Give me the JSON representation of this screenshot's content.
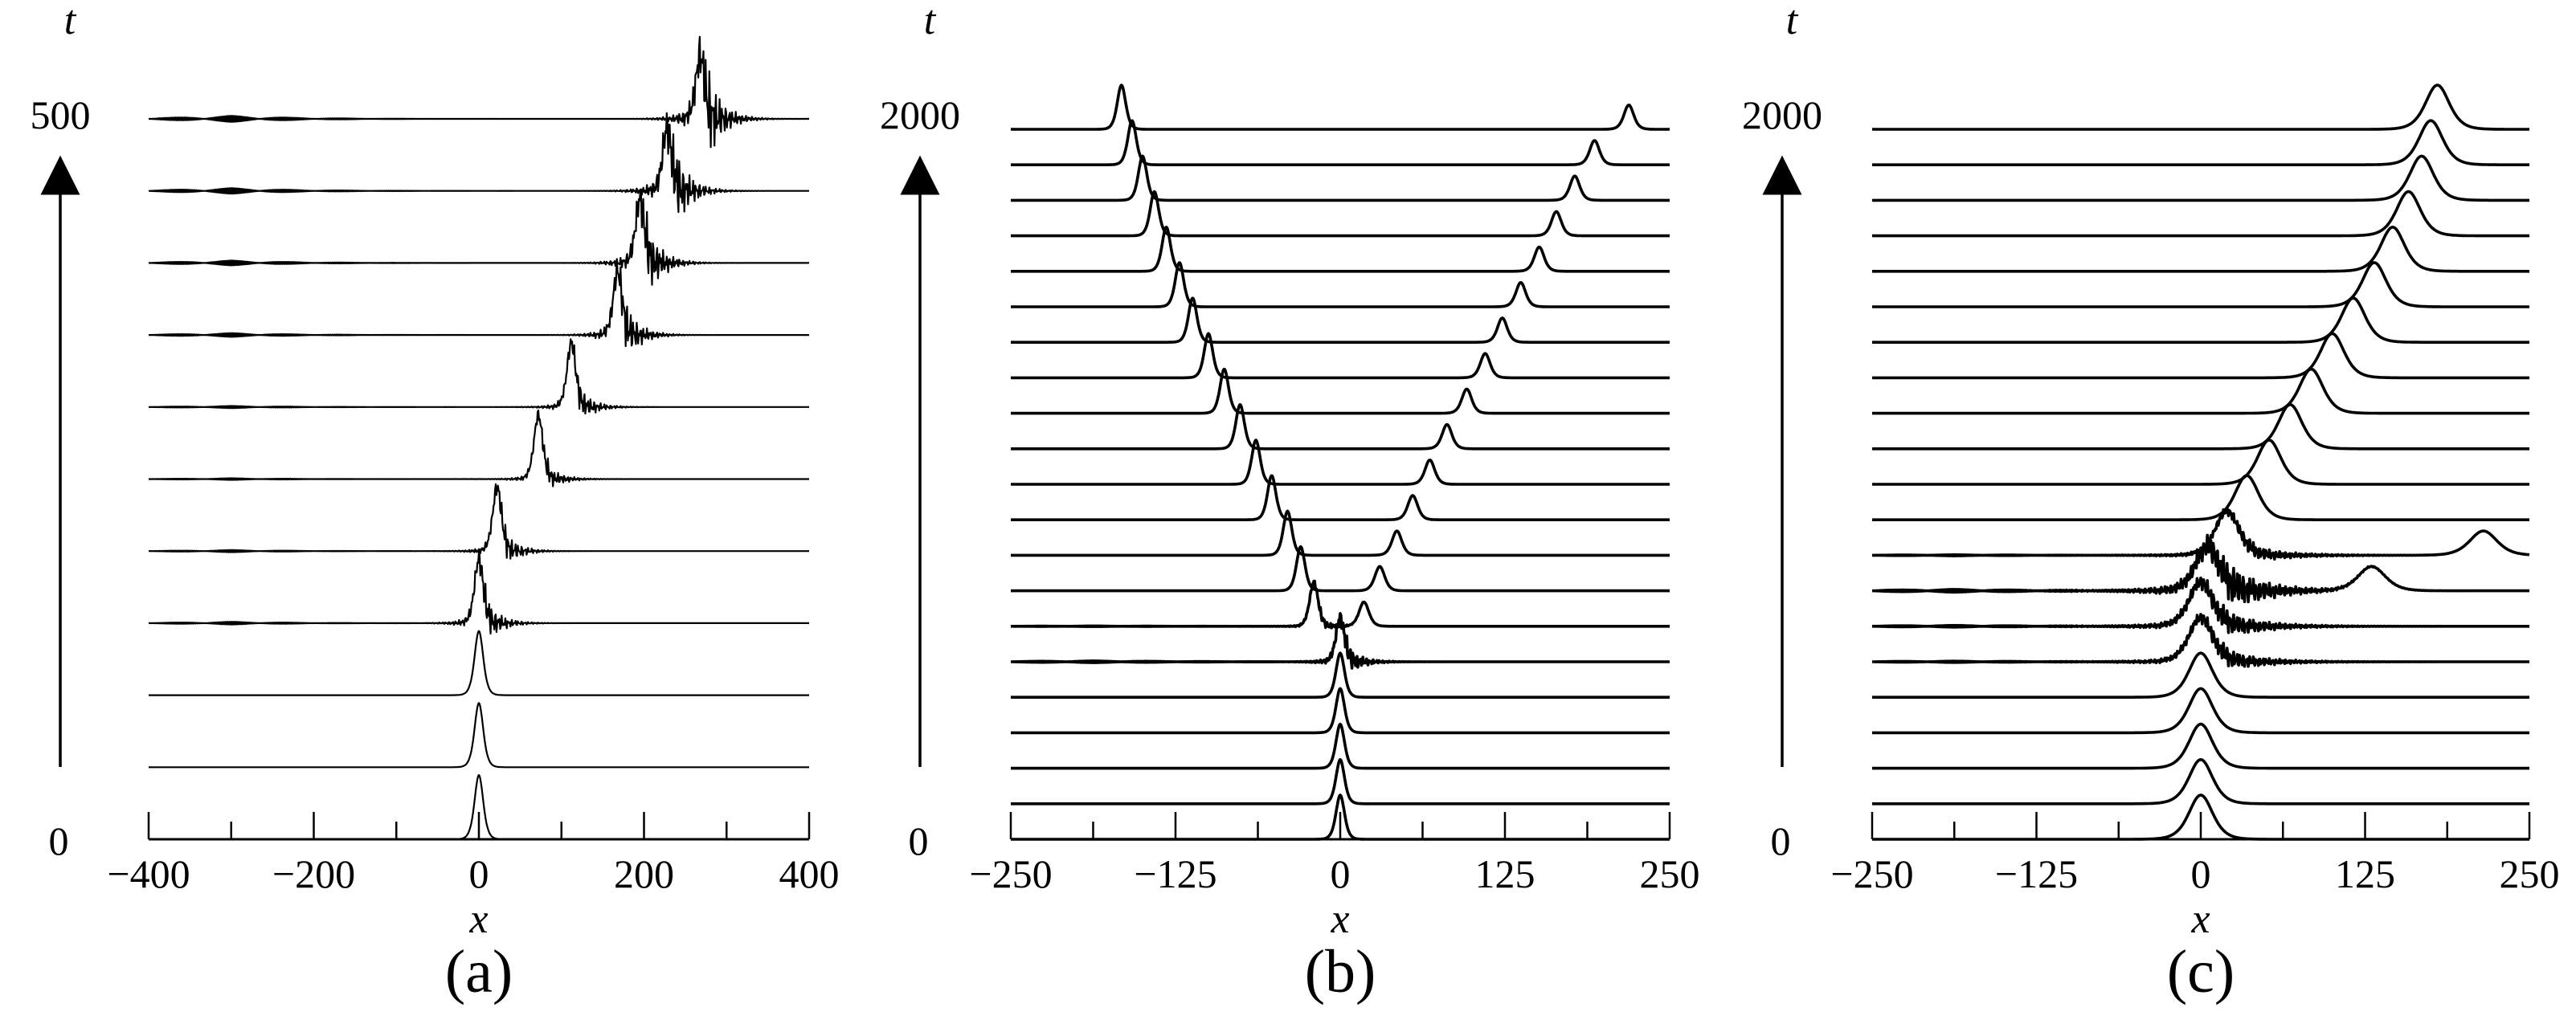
{
  "chart_data": [
    {
      "type": "waterfall-line",
      "panel": "(a)",
      "xlabel": "x",
      "ylabel": "t",
      "xlim": [
        -400,
        400
      ],
      "xticks": [
        -400,
        -300,
        -200,
        -100,
        0,
        100,
        200,
        300,
        400
      ],
      "xtick_labels": [
        "-400",
        "",
        "-200",
        "",
        "0",
        "",
        "200",
        "",
        "400"
      ],
      "t_range": [
        0,
        500
      ],
      "t_labels": [
        "0",
        "500"
      ],
      "series": [
        {
          "t": 0,
          "center": 0,
          "noise": 0,
          "second": null
        },
        {
          "t": 50,
          "center": 0,
          "noise": 0,
          "second": null
        },
        {
          "t": 100,
          "center": 0,
          "noise": 0,
          "second": null
        },
        {
          "t": 150,
          "center": 0,
          "noise": 0.55,
          "second": null
        },
        {
          "t": 200,
          "center": 22,
          "noise": 0.45,
          "second": null
        },
        {
          "t": 250,
          "center": 72,
          "noise": 0.35,
          "second": null
        },
        {
          "t": 300,
          "center": 112,
          "noise": 0.45,
          "second": null
        },
        {
          "t": 350,
          "center": 168,
          "noise": 0.75,
          "second": null
        },
        {
          "t": 400,
          "center": 195,
          "noise": 0.95,
          "second": null
        },
        {
          "t": 450,
          "center": 228,
          "noise": 1.1,
          "second": null
        },
        {
          "t": 500,
          "center": 268,
          "noise": 1.2,
          "second": null
        }
      ]
    },
    {
      "type": "waterfall-line",
      "panel": "(b)",
      "xlabel": "x",
      "ylabel": "t",
      "xlim": [
        -250,
        250
      ],
      "xticks": [
        -250,
        -187.5,
        -125,
        -62.5,
        0,
        62.5,
        125,
        187.5,
        250
      ],
      "xtick_labels": [
        "-250",
        "",
        "-125",
        "",
        "0",
        "",
        "125",
        "",
        "250"
      ],
      "t_range": [
        0,
        2000
      ],
      "t_labels": [
        "0",
        "2000"
      ],
      "series": [
        {
          "t": 0,
          "center": 0,
          "noise": 0,
          "second": null
        },
        {
          "t": 100,
          "center": 0,
          "noise": 0,
          "second": null
        },
        {
          "t": 200,
          "center": 0,
          "noise": 0,
          "second": null
        },
        {
          "t": 300,
          "center": 0,
          "noise": 0,
          "second": null
        },
        {
          "t": 400,
          "center": 0,
          "noise": 0,
          "second": null
        },
        {
          "t": 500,
          "center": 0,
          "noise": 0.5,
          "second": null
        },
        {
          "t": 600,
          "center": -20,
          "noise": 0.2,
          "second": 18
        },
        {
          "t": 700,
          "center": -30,
          "noise": 0,
          "second": 30
        },
        {
          "t": 800,
          "center": -40,
          "noise": 0,
          "second": 43
        },
        {
          "t": 900,
          "center": -52,
          "noise": 0,
          "second": 55
        },
        {
          "t": 1000,
          "center": -64,
          "noise": 0,
          "second": 68
        },
        {
          "t": 1100,
          "center": -76,
          "noise": 0,
          "second": 81
        },
        {
          "t": 1200,
          "center": -88,
          "noise": 0,
          "second": 96
        },
        {
          "t": 1300,
          "center": -100,
          "noise": 0,
          "second": 110
        },
        {
          "t": 1400,
          "center": -112,
          "noise": 0,
          "second": 123
        },
        {
          "t": 1500,
          "center": -122,
          "noise": 0,
          "second": 137
        },
        {
          "t": 1600,
          "center": -132,
          "noise": 0,
          "second": 151
        },
        {
          "t": 1700,
          "center": -141,
          "noise": 0,
          "second": 164
        },
        {
          "t": 1800,
          "center": -150,
          "noise": 0,
          "second": 178
        },
        {
          "t": 1900,
          "center": -158,
          "noise": 0,
          "second": 193
        },
        {
          "t": 2000,
          "center": -166,
          "noise": 0,
          "second": 219
        }
      ]
    },
    {
      "type": "waterfall-line",
      "panel": "(c)",
      "xlabel": "x",
      "ylabel": "t",
      "xlim": [
        -250,
        250
      ],
      "xticks": [
        -250,
        -187.5,
        -125,
        -62.5,
        0,
        62.5,
        125,
        187.5,
        250
      ],
      "xtick_labels": [
        "-250",
        "",
        "-125",
        "",
        "0",
        "",
        "125",
        "",
        "250"
      ],
      "t_range": [
        0,
        2000
      ],
      "t_labels": [
        "0",
        "2000"
      ],
      "series": [
        {
          "t": 0,
          "center": 0,
          "noise": 0,
          "second": null
        },
        {
          "t": 100,
          "center": 0,
          "noise": 0,
          "second": null
        },
        {
          "t": 200,
          "center": 0,
          "noise": 0,
          "second": null
        },
        {
          "t": 300,
          "center": 0,
          "noise": 0,
          "second": null
        },
        {
          "t": 400,
          "center": 0,
          "noise": 0,
          "second": null
        },
        {
          "t": 500,
          "center": 0,
          "noise": 0.4,
          "second": null
        },
        {
          "t": 600,
          "center": 0,
          "noise": 0.5,
          "second": null
        },
        {
          "t": 700,
          "center": 5,
          "noise": 0.8,
          "second": 130
        },
        {
          "t": 800,
          "center": 20,
          "noise": 0.3,
          "second": 215
        },
        {
          "t": 900,
          "center": 35,
          "noise": 0,
          "second": null
        },
        {
          "t": 1000,
          "center": 52,
          "noise": 0,
          "second": null
        },
        {
          "t": 1100,
          "center": 68,
          "noise": 0,
          "second": null
        },
        {
          "t": 1200,
          "center": 84,
          "noise": 0,
          "second": null
        },
        {
          "t": 1300,
          "center": 100,
          "noise": 0,
          "second": null
        },
        {
          "t": 1400,
          "center": 116,
          "noise": 0,
          "second": null
        },
        {
          "t": 1500,
          "center": 132,
          "noise": 0,
          "second": null
        },
        {
          "t": 1600,
          "center": 146,
          "noise": 0,
          "second": null
        },
        {
          "t": 1700,
          "center": 158,
          "noise": 0,
          "second": null
        },
        {
          "t": 1800,
          "center": 168,
          "noise": 0,
          "second": null
        },
        {
          "t": 1900,
          "center": 175,
          "noise": 0,
          "second": null
        },
        {
          "t": 2000,
          "center": 180,
          "noise": 0,
          "second": null
        }
      ]
    }
  ]
}
